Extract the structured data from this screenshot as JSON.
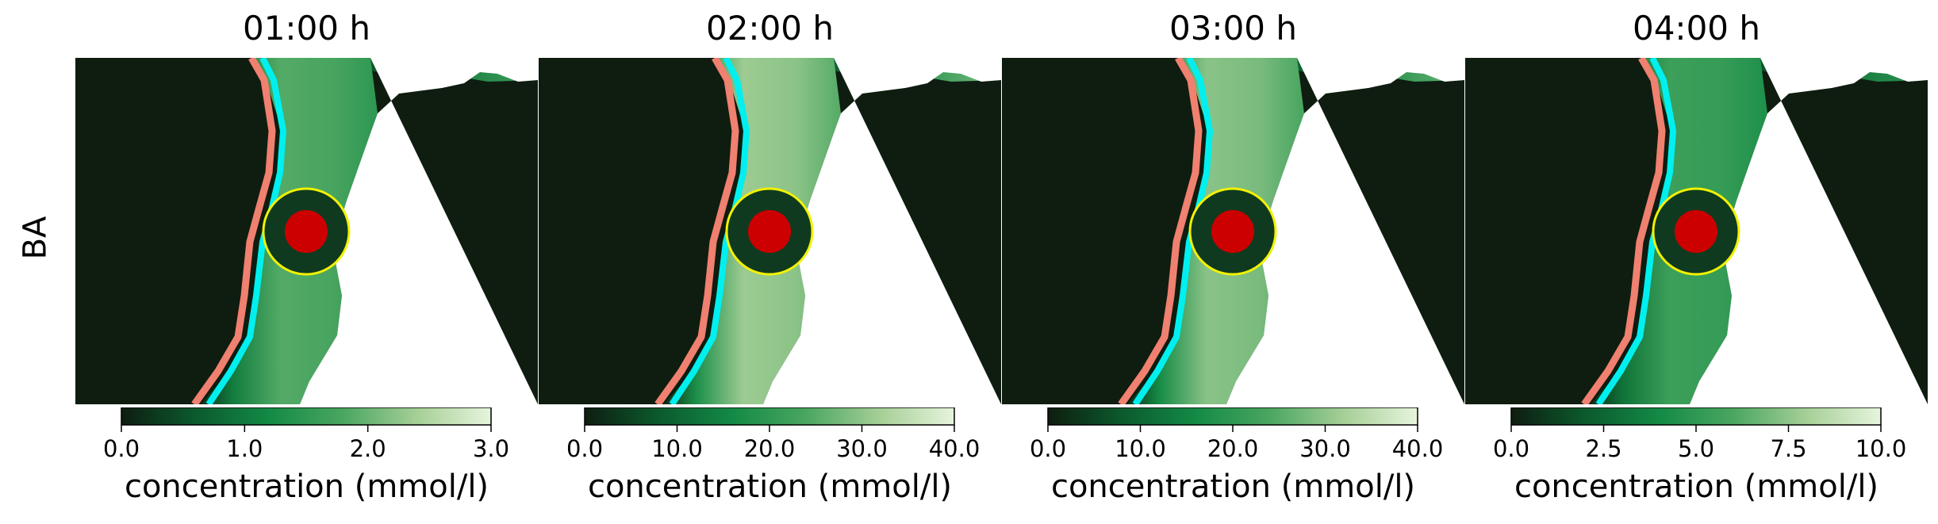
{
  "figure": {
    "row_label": "BA"
  },
  "colors": {
    "dark": "#0e1d10",
    "cmap": [
      "#0e1d10",
      "#0b5a2d",
      "#138a45",
      "#4aa661",
      "#a6cf97",
      "#e6f5dc"
    ],
    "salmon_line": "#f08070",
    "cyan_line": "#00f0f0",
    "marker_outer": "#0f3a20",
    "marker_ring": "#f2f200",
    "marker_inner": "#cc0000"
  },
  "chart_data": [
    {
      "type": "heatmap",
      "title": "01:00 h",
      "colorbar": {
        "label": "concentration (mmol/l)",
        "range": [
          0.0,
          3.0
        ],
        "ticks": [
          "0.0",
          "1.0",
          "2.0",
          "3.0"
        ]
      },
      "band_level": 0.62
    },
    {
      "type": "heatmap",
      "title": "02:00 h",
      "colorbar": {
        "label": "concentration (mmol/l)",
        "range": [
          0.0,
          40.0
        ],
        "ticks": [
          "0.0",
          "10.0",
          "20.0",
          "30.0",
          "40.0"
        ]
      },
      "band_level": 0.78
    },
    {
      "type": "heatmap",
      "title": "03:00 h",
      "colorbar": {
        "label": "concentration (mmol/l)",
        "range": [
          0.0,
          40.0
        ],
        "ticks": [
          "0.0",
          "10.0",
          "20.0",
          "30.0",
          "40.0"
        ]
      },
      "band_level": 0.74
    },
    {
      "type": "heatmap",
      "title": "04:00 h",
      "colorbar": {
        "label": "concentration (mmol/l)",
        "range": [
          0.0,
          10.0
        ],
        "ticks": [
          "0.0",
          "2.5",
          "5.0",
          "7.5",
          "10.0"
        ]
      },
      "band_level": 0.55
    }
  ]
}
